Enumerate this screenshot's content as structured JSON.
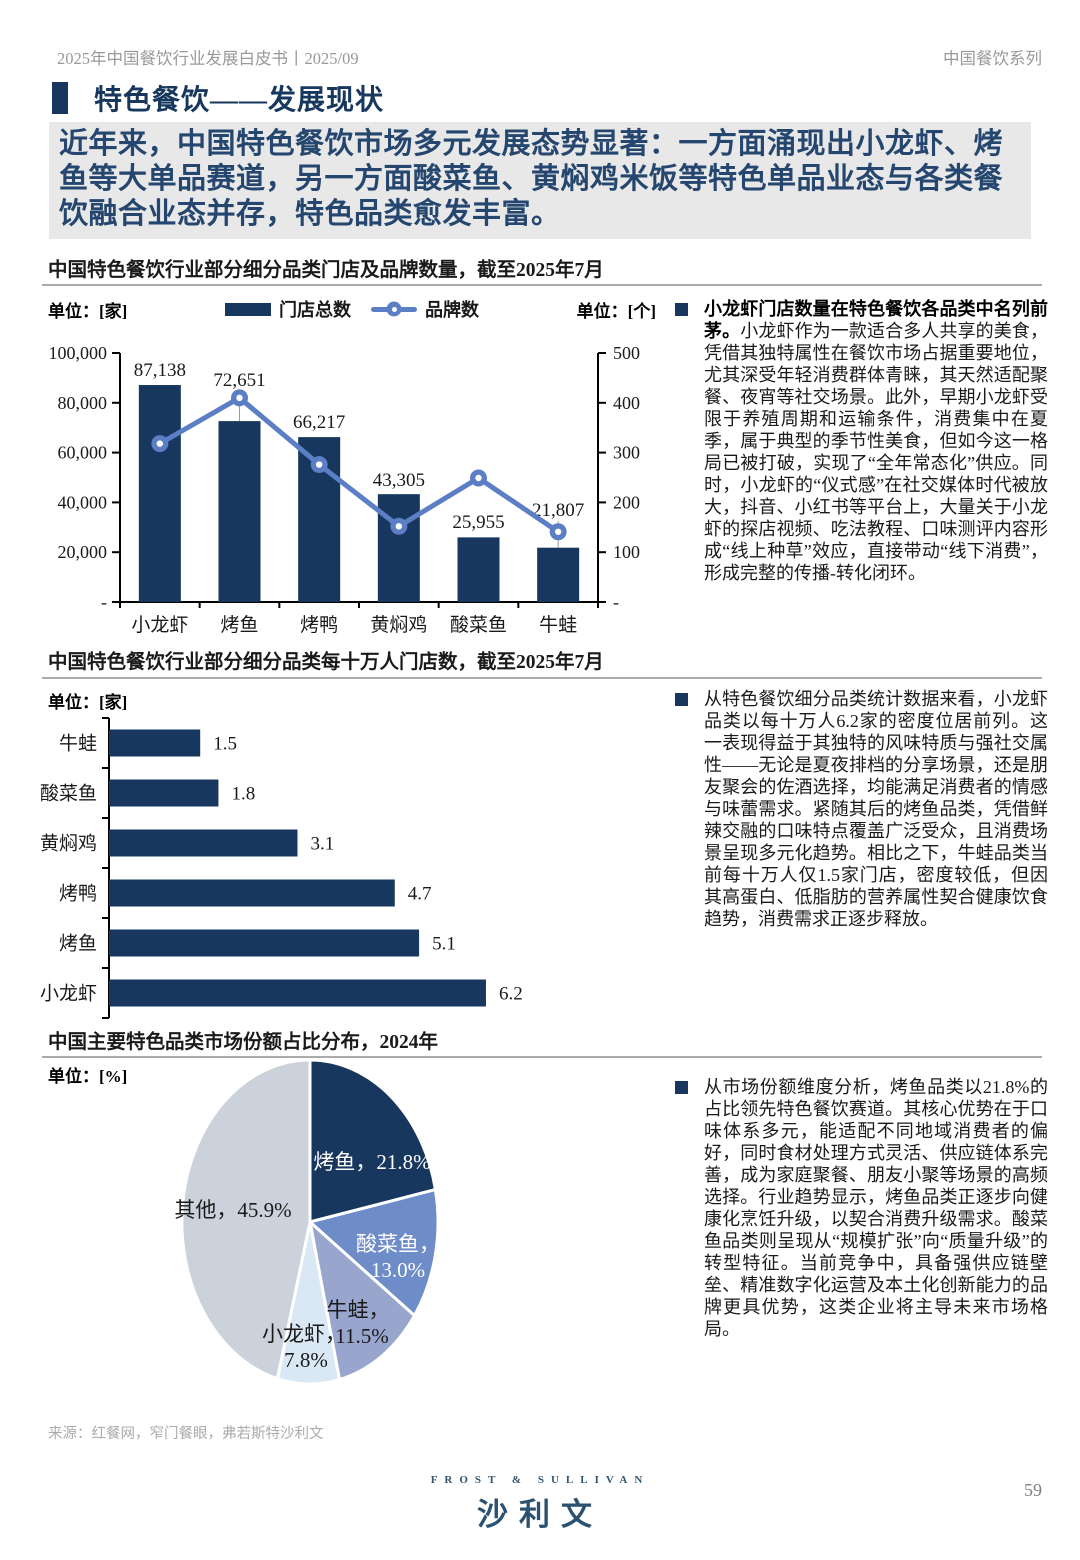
{
  "page": {
    "header_left": "2025年中国餐饮行业发展白皮书丨2025/09",
    "header_right": "中国餐饮系列",
    "section_title": "特色餐饮——发展现状",
    "intro": "近年来，中国特色餐饮市场多元发展态势显著：一方面涌现出小龙虾、烤鱼等大单品赛道，另一方面酸菜鱼、黄焖鸡米饭等特色单品业态与各类餐饮融合业态并存，特色品类愈发丰富。",
    "source": "来源：红餐网，窄门餐眼，弗若斯特沙利文",
    "page_number": "59",
    "logo_top": "FROST & SULLIVAN",
    "logo_main": "沙利文"
  },
  "colors": {
    "navy": "#17375E",
    "line_blue": "#5B7EC4",
    "intro_text": "#25466F",
    "intro_bg": "#E8E8E8",
    "rule_gray": "#ABABAB"
  },
  "chart_data": [
    {
      "type": "bar",
      "subtype": "bar-plus-line-combo",
      "title": "中国特色餐饮行业部分细分品类门店及品牌数量，截至2025年7月",
      "unit_left": "单位：[家]",
      "unit_right": "单位：[个]",
      "categories": [
        "小龙虾",
        "烤鱼",
        "烤鸭",
        "黄焖鸡",
        "酸菜鱼",
        "牛蛙"
      ],
      "series": [
        {
          "name": "门店总数",
          "kind": "bar",
          "axis": "left",
          "values": [
            87138,
            72651,
            66217,
            43305,
            25955,
            21807
          ],
          "labels": [
            "87,138",
            "72,651",
            "66,217",
            "43,305",
            "25,955",
            "21,807"
          ]
        },
        {
          "name": "品牌数",
          "kind": "line",
          "axis": "right",
          "values": [
            318,
            410,
            276,
            152,
            249,
            141
          ]
        }
      ],
      "left_axis": {
        "min": 0,
        "max": 100000,
        "step": 20000,
        "tick_labels": [
          "100,000",
          "80,000",
          "60,000",
          "40,000",
          "20,000",
          "-"
        ]
      },
      "right_axis": {
        "min": 0,
        "max": 500,
        "step": 100,
        "tick_labels": [
          "500",
          "400",
          "300",
          "200",
          "100",
          "-"
        ]
      },
      "legend_position": "top-center",
      "grid": false
    },
    {
      "type": "bar",
      "orientation": "horizontal",
      "title": "中国特色餐饮行业部分细分品类每十万人门店数，截至2025年7月",
      "unit": "单位：[家]",
      "categories": [
        "牛蛙",
        "酸菜鱼",
        "黄焖鸡",
        "烤鸭",
        "烤鱼",
        "小龙虾"
      ],
      "values": [
        1.5,
        1.8,
        3.1,
        4.7,
        5.1,
        6.2
      ],
      "value_labels": [
        "1.5",
        "1.8",
        "3.1",
        "4.7",
        "5.1",
        "6.2"
      ],
      "xlim": [
        0,
        7
      ],
      "grid": false
    },
    {
      "type": "pie",
      "title": "中国主要特色品类市场份额占比分布，2024年",
      "unit": "单位：[%]",
      "slices": [
        {
          "label": "烤鱼",
          "value": 21.8,
          "color": "#17375E",
          "text_color": "#FFFFFF"
        },
        {
          "label": "酸菜鱼",
          "value": 13.0,
          "color": "#6E8CC8",
          "text_color": "#FFFFFF"
        },
        {
          "label": "牛蛙",
          "value": 11.5,
          "color": "#98A6CD",
          "text_color": "#1A1A1A"
        },
        {
          "label": "小龙虾",
          "value": 7.8,
          "color": "#DAE7F5",
          "text_color": "#1A1A1A"
        },
        {
          "label": "其他",
          "value": 45.9,
          "color": "#CBD2DC",
          "text_color": "#1A1A1A"
        }
      ]
    }
  ],
  "bullets": [
    {
      "lead": "小龙虾门店数量在特色餐饮各品类中名列前茅。",
      "body": "小龙虾作为一款适合多人共享的美食，凭借其独特属性在餐饮市场占据重要地位，尤其深受年轻消费群体青睐，其天然适配聚餐、夜宵等社交场景。此外，早期小龙虾受限于养殖周期和运输条件，消费集中在夏季，属于典型的季节性美食，但如今这一格局已被打破，实现了“全年常态化”供应。同时，小龙虾的“仪式感”在社交媒体时代被放大，抖音、小红书等平台上，大量关于小龙虾的探店视频、吃法教程、口味测评内容形成“线上种草”效应，直接带动“线下消费”，形成完整的传播-转化闭环。"
    },
    {
      "lead": "",
      "body": "从特色餐饮细分品类统计数据来看，小龙虾品类以每十万人6.2家的密度位居前列。这一表现得益于其独特的风味特质与强社交属性——无论是夏夜排档的分享场景，还是朋友聚会的佐酒选择，均能满足消费者的情感与味蕾需求。紧随其后的烤鱼品类，凭借鲜辣交融的口味特点覆盖广泛受众，且消费场景呈现多元化趋势。相比之下，牛蛙品类当前每十万人仅1.5家门店，密度较低，但因其高蛋白、低脂肪的营养属性契合健康饮食趋势，消费需求正逐步释放。"
    },
    {
      "lead": "",
      "body": "从市场份额维度分析，烤鱼品类以21.8%的占比领先特色餐饮赛道。其核心优势在于口味体系多元，能适配不同地域消费者的偏好，同时食材处理方式灵活、供应链体系完善，成为家庭聚餐、朋友小聚等场景的高频选择。行业趋势显示，烤鱼品类正逐步向健康化烹饪升级，以契合消费升级需求。酸菜鱼品类则呈现从“规模扩张”向“质量升级”的转型特征。当前竞争中，具备强供应链壁垒、精准数字化运营及本土化创新能力的品牌更具优势，这类企业将主导未来市场格局。"
    }
  ]
}
